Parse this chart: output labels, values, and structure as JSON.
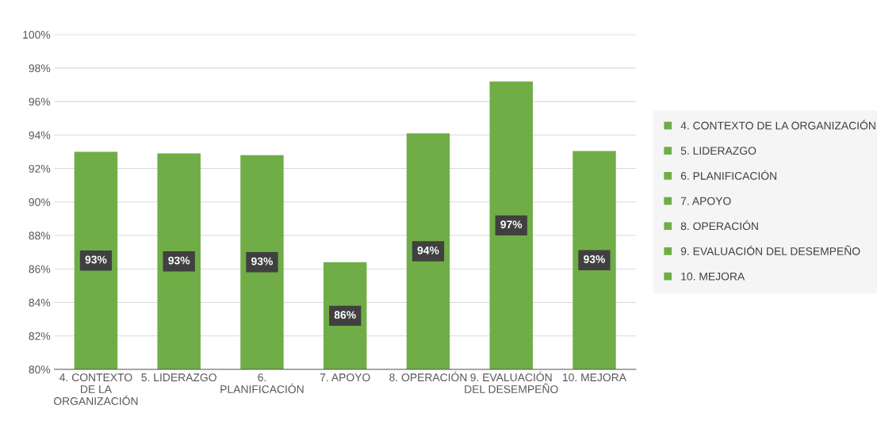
{
  "chart_data": {
    "type": "bar",
    "categories": [
      "4. CONTEXTO DE LA ORGANIZACIÓN",
      "5. LIDERAZGO",
      "6. PLANIFICACIÓN",
      "7. APOYO",
      "8. OPERACIÓN",
      "9. EVALUACIÓN DEL DESEMPEÑO",
      "10. MEJORA"
    ],
    "series": [
      {
        "name": "4. CONTEXTO DE LA ORGANIZACIÓN",
        "color": "#70ad47",
        "values": [
          93.0,
          null,
          null,
          null,
          null,
          null,
          null
        ],
        "value_labels": [
          "93%",
          null,
          null,
          null,
          null,
          null,
          null
        ]
      },
      {
        "name": "5. LIDERAZGO",
        "color": "#70ad47",
        "values": [
          null,
          92.9,
          null,
          null,
          null,
          null,
          null
        ],
        "value_labels": [
          null,
          "93%",
          null,
          null,
          null,
          null,
          null
        ]
      },
      {
        "name": "6. PLANIFICACIÓN",
        "color": "#70ad47",
        "values": [
          null,
          null,
          92.8,
          null,
          null,
          null,
          null
        ],
        "value_labels": [
          null,
          null,
          "93%",
          null,
          null,
          null,
          null
        ]
      },
      {
        "name": "7. APOYO",
        "color": "#70ad47",
        "values": [
          null,
          null,
          null,
          86.4,
          null,
          null,
          null
        ],
        "value_labels": [
          null,
          null,
          null,
          "86%",
          null,
          null,
          null
        ]
      },
      {
        "name": "8. OPERACIÓN",
        "color": "#70ad47",
        "values": [
          null,
          null,
          null,
          null,
          94.1,
          null,
          null
        ],
        "value_labels": [
          null,
          null,
          null,
          null,
          "94%",
          null,
          null
        ]
      },
      {
        "name": "9. EVALUACIÓN DEL DESEMPEÑO",
        "color": "#70ad47",
        "values": [
          null,
          null,
          null,
          null,
          null,
          97.2,
          null
        ],
        "value_labels": [
          null,
          null,
          null,
          null,
          null,
          "97%",
          null
        ]
      },
      {
        "name": "10. MEJORA",
        "color": "#70ad47",
        "values": [
          null,
          null,
          null,
          null,
          null,
          null,
          93.05
        ],
        "value_labels": [
          null,
          null,
          null,
          null,
          null,
          null,
          "93%"
        ]
      }
    ],
    "ylim": [
      80,
      100
    ],
    "yticks": [
      {
        "value": 80,
        "label": "80%"
      },
      {
        "value": 82,
        "label": "82%"
      },
      {
        "value": 84,
        "label": "84%"
      },
      {
        "value": 86,
        "label": "86%"
      },
      {
        "value": 88,
        "label": "88%"
      },
      {
        "value": 90,
        "label": "90%"
      },
      {
        "value": 92,
        "label": "92%"
      },
      {
        "value": 94,
        "label": "94%"
      },
      {
        "value": 96,
        "label": "96%"
      },
      {
        "value": 98,
        "label": "98%"
      },
      {
        "value": 100,
        "label": "100%"
      }
    ],
    "grid": "y",
    "legend": "right"
  }
}
